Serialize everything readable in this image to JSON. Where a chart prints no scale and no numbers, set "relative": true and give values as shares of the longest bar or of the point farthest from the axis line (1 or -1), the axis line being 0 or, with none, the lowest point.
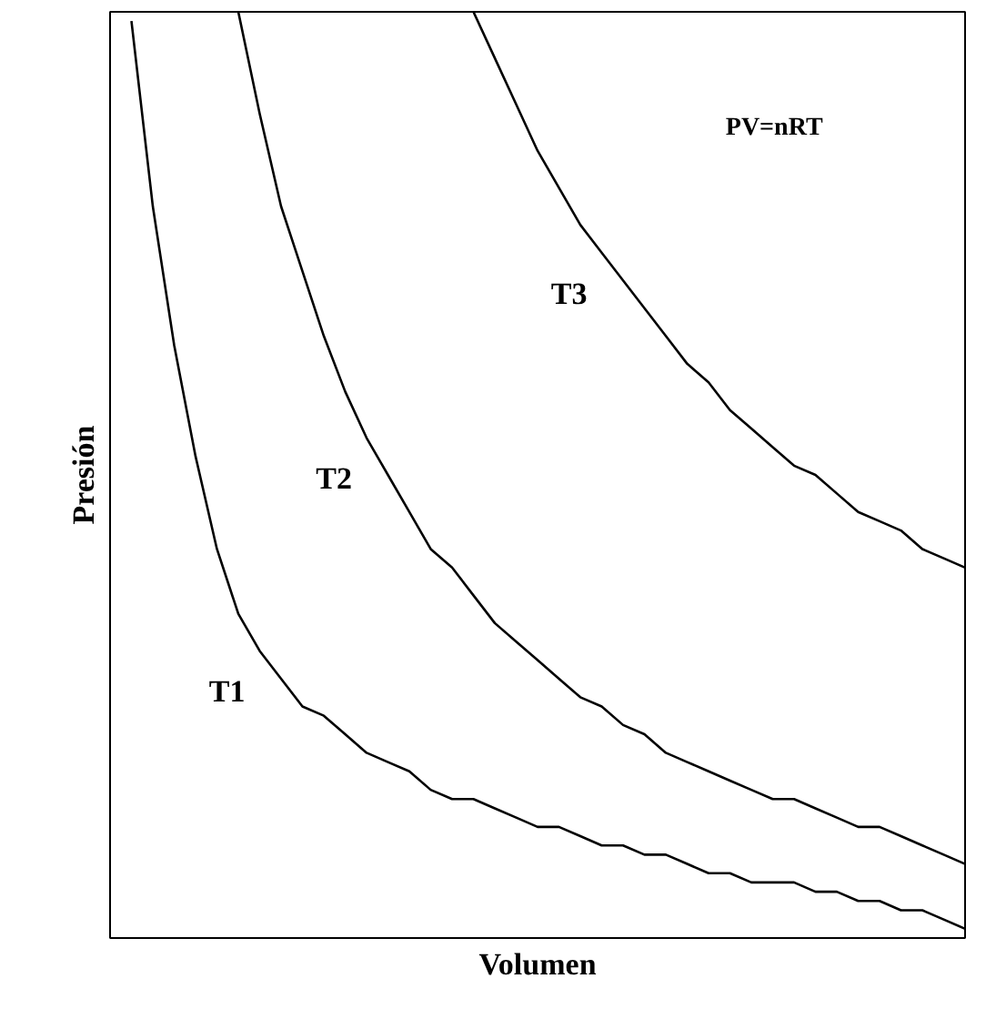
{
  "chart_data": {
    "type": "line",
    "relative": true,
    "xlabel": "Volumen",
    "ylabel": "Presión",
    "categories": [
      null,
      null,
      null,
      null,
      null,
      null,
      null,
      null,
      null,
      null,
      null,
      null,
      null,
      null,
      null,
      null,
      null,
      null,
      null,
      null,
      null,
      null,
      null,
      null,
      null,
      null,
      null,
      null,
      null,
      null,
      null,
      null,
      null,
      null,
      null,
      null,
      null,
      null,
      null,
      null,
      null
    ],
    "series": [
      {
        "name": "T1",
        "color": "#000000",
        "values": [
          null,
          0.99,
          0.79,
          0.64,
          0.52,
          0.42,
          0.35,
          0.31,
          0.28,
          0.25,
          0.24,
          0.22,
          0.2,
          0.19,
          0.18,
          0.16,
          0.15,
          0.15,
          0.14,
          0.13,
          0.12,
          0.12,
          0.11,
          0.1,
          0.1,
          0.09,
          0.09,
          0.08,
          0.07,
          0.07,
          0.06,
          0.06,
          0.06,
          0.05,
          0.05,
          0.04,
          0.04,
          0.03,
          0.03,
          0.02,
          0.01
        ]
      },
      {
        "name": "T2",
        "color": "#000000",
        "values": [
          null,
          null,
          null,
          null,
          null,
          null,
          1.0,
          0.89,
          0.79,
          0.72,
          0.65,
          0.59,
          0.54,
          0.5,
          0.46,
          0.42,
          0.4,
          0.37,
          0.34,
          0.32,
          0.3,
          0.28,
          0.26,
          0.25,
          0.23,
          0.22,
          0.2,
          0.19,
          0.18,
          0.17,
          0.16,
          0.15,
          0.15,
          0.14,
          0.13,
          0.12,
          0.12,
          0.11,
          0.1,
          0.09,
          0.08
        ]
      },
      {
        "name": "T3",
        "color": "#000000",
        "values": [
          null,
          null,
          null,
          null,
          null,
          null,
          null,
          null,
          null,
          null,
          null,
          null,
          null,
          null,
          null,
          null,
          null,
          1.0,
          0.95,
          0.9,
          0.85,
          0.81,
          0.77,
          0.74,
          0.71,
          0.68,
          0.65,
          0.62,
          0.6,
          0.57,
          0.55,
          0.53,
          0.51,
          0.5,
          0.48,
          0.46,
          0.45,
          0.44,
          0.42,
          0.41,
          0.4
        ]
      }
    ],
    "annotations": [
      "PV=nRT"
    ]
  }
}
